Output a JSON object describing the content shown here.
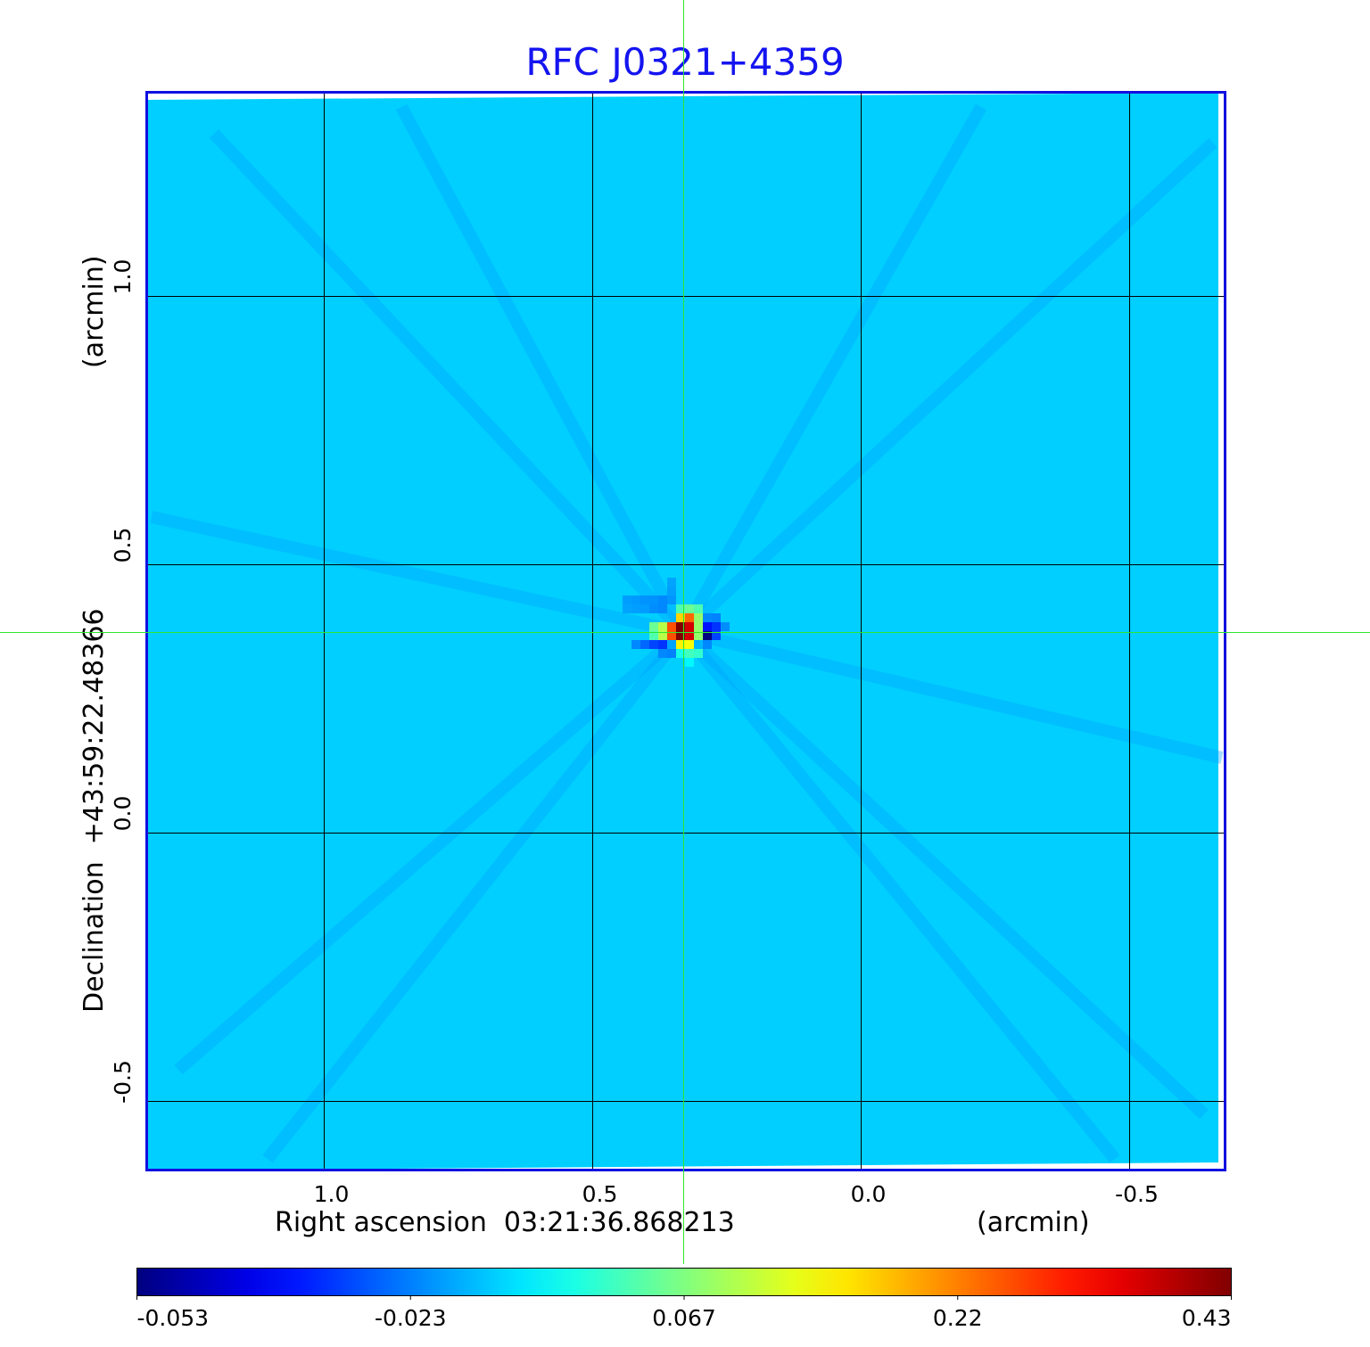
{
  "chart_data": {
    "type": "heatmap",
    "title": "RFC J0321+4359",
    "xlabel": "Right ascension  03:21:36.868213",
    "xunit": "(arcmin)",
    "ylabel": "Declination  +43:59:22.48366",
    "yunit": "(arcmin)",
    "xlim": [
      1.33,
      -0.68
    ],
    "ylim": [
      -0.63,
      1.38
    ],
    "x_ticks": [
      1.0,
      0.5,
      0.0,
      -0.5
    ],
    "x_tick_labels": [
      "1.0",
      "0.5",
      "0.0",
      "-0.5"
    ],
    "y_ticks": [
      1.0,
      0.5,
      0.0,
      -0.5
    ],
    "y_tick_labels": [
      "1.0",
      "0.5",
      "0.0",
      "-0.5"
    ],
    "grid": true,
    "crosshair": {
      "x": 0.326,
      "y": 0.375
    },
    "colormap": "jet",
    "colorbar": {
      "position": "bottom",
      "ticks": [
        -0.053,
        -0.023,
        0.067,
        0.22,
        0.43
      ],
      "tick_labels": [
        "-0.053",
        "-0.023",
        "0.067",
        "0.22",
        "0.43"
      ]
    },
    "background_value": 0.005,
    "source_pixels": [
      [
        0,
        0,
        0.43
      ],
      [
        0,
        1,
        0.43
      ],
      [
        1,
        0,
        0.36
      ],
      [
        1,
        1,
        0.36
      ],
      [
        -1,
        0,
        0.26
      ],
      [
        -1,
        1,
        0.26
      ],
      [
        0,
        -1,
        0.17
      ],
      [
        1,
        -1,
        0.24
      ],
      [
        0,
        2,
        0.15
      ],
      [
        1,
        2,
        0.14
      ],
      [
        -2,
        0,
        0.1
      ],
      [
        -2,
        1,
        0.1
      ],
      [
        -3,
        0,
        0.06
      ],
      [
        -3,
        1,
        0.05
      ],
      [
        2,
        0,
        0.08
      ],
      [
        2,
        1,
        0.08
      ],
      [
        2,
        -1,
        0.08
      ],
      [
        2,
        -2,
        0.05
      ],
      [
        1,
        -2,
        0.06
      ],
      [
        0,
        -2,
        0.05
      ],
      [
        3,
        1,
        -0.053
      ],
      [
        3,
        0,
        -0.036
      ],
      [
        4,
        0,
        -0.032
      ],
      [
        4,
        1,
        -0.03
      ],
      [
        3,
        2,
        -0.02
      ],
      [
        4,
        -1,
        -0.022
      ],
      [
        5,
        0,
        -0.018
      ],
      [
        3,
        -1,
        -0.02
      ],
      [
        -4,
        2,
        -0.026
      ],
      [
        -3,
        2,
        -0.03
      ],
      [
        -2,
        2,
        -0.032
      ],
      [
        -5,
        2,
        -0.02
      ],
      [
        -1,
        3,
        -0.022
      ],
      [
        -2,
        3,
        -0.02
      ],
      [
        -1,
        2,
        -0.01
      ],
      [
        1,
        3,
        0.045
      ],
      [
        2,
        3,
        0.04
      ],
      [
        0,
        3,
        0.03
      ],
      [
        1,
        4,
        0.02
      ],
      [
        -6,
        -3,
        -0.012
      ],
      [
        -5,
        -3,
        -0.014
      ],
      [
        -4,
        -3,
        -0.016
      ],
      [
        -3,
        -3,
        -0.016
      ],
      [
        -2,
        -3,
        -0.02
      ],
      [
        -6,
        -2,
        -0.01
      ],
      [
        -5,
        -2,
        -0.012
      ],
      [
        -4,
        -2,
        -0.013
      ],
      [
        -3,
        -2,
        -0.018
      ],
      [
        -2,
        -2,
        -0.02
      ],
      [
        -1,
        -3,
        -0.015
      ],
      [
        -1,
        -4,
        -0.012
      ],
      [
        -1,
        -5,
        -0.01
      ]
    ]
  }
}
